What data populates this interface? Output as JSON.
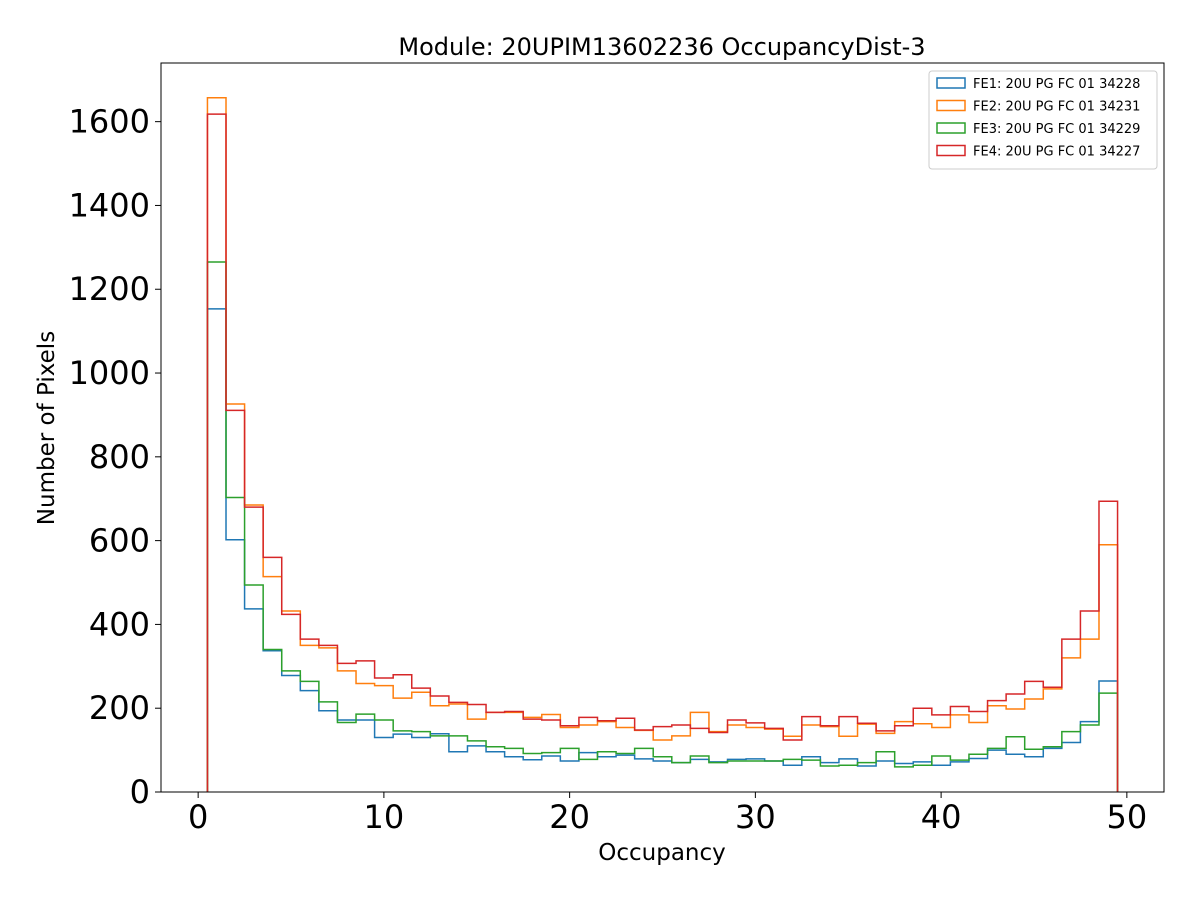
{
  "chart_data": {
    "type": "histogram",
    "title": "Module: 20UPIM13602236 OccupancyDist-3",
    "xlabel": "Occupancy",
    "ylabel": "Number of Pixels",
    "xlim": [
      -2,
      52
    ],
    "ylim": [
      0,
      1740
    ],
    "xticks": [
      0,
      10,
      20,
      30,
      40,
      50
    ],
    "yticks": [
      0,
      200,
      400,
      600,
      800,
      1000,
      1200,
      1400,
      1600
    ],
    "xtick_labels": [
      "0",
      "10",
      "20",
      "30",
      "40",
      "50"
    ],
    "ytick_labels": [
      "0",
      "200",
      "400",
      "600",
      "800",
      "1000",
      "1200",
      "1400",
      "1600"
    ],
    "bin_start": 0.5,
    "bin_width": 1,
    "grid": false,
    "legend_position": "top-right",
    "series": [
      {
        "name": "FE1: 20U PG FC 01 34228",
        "color": "#1f77b4",
        "values": [
          1153,
          602,
          437,
          337,
          278,
          242,
          194,
          172,
          172,
          130,
          138,
          130,
          139,
          96,
          110,
          96,
          84,
          77,
          86,
          74,
          94,
          84,
          88,
          79,
          74,
          70,
          78,
          72,
          78,
          79,
          74,
          64,
          84,
          70,
          79,
          62,
          74,
          68,
          72,
          64,
          72,
          80,
          100,
          90,
          84,
          104,
          118,
          168,
          265
        ]
      },
      {
        "name": "FE2: 20U PG FC 01 34231",
        "color": "#ff7f0e",
        "values": [
          1657,
          926,
          685,
          514,
          432,
          350,
          344,
          289,
          259,
          254,
          224,
          238,
          206,
          210,
          174,
          190,
          190,
          178,
          185,
          154,
          160,
          168,
          154,
          147,
          124,
          134,
          190,
          144,
          160,
          154,
          150,
          133,
          160,
          156,
          133,
          162,
          140,
          168,
          163,
          154,
          184,
          166,
          206,
          198,
          222,
          246,
          320,
          365,
          590
        ]
      },
      {
        "name": "FE3: 20U PG FC 01 34229",
        "color": "#2ca02c",
        "values": [
          1265,
          703,
          494,
          340,
          289,
          264,
          215,
          166,
          186,
          172,
          146,
          144,
          134,
          134,
          122,
          108,
          104,
          92,
          94,
          104,
          78,
          96,
          92,
          104,
          84,
          70,
          86,
          70,
          74,
          74,
          74,
          78,
          76,
          62,
          64,
          70,
          96,
          60,
          64,
          86,
          76,
          90,
          104,
          132,
          102,
          108,
          144,
          160,
          236
        ]
      },
      {
        "name": "FE4: 20U PG FC 01 34227",
        "color": "#d62728",
        "values": [
          1618,
          911,
          680,
          560,
          424,
          365,
          350,
          307,
          313,
          272,
          280,
          248,
          229,
          214,
          209,
          190,
          192,
          174,
          172,
          158,
          178,
          170,
          176,
          148,
          156,
          160,
          152,
          142,
          172,
          165,
          152,
          124,
          180,
          158,
          180,
          164,
          146,
          158,
          200,
          184,
          204,
          192,
          218,
          234,
          264,
          250,
          365,
          432,
          694
        ]
      }
    ]
  }
}
